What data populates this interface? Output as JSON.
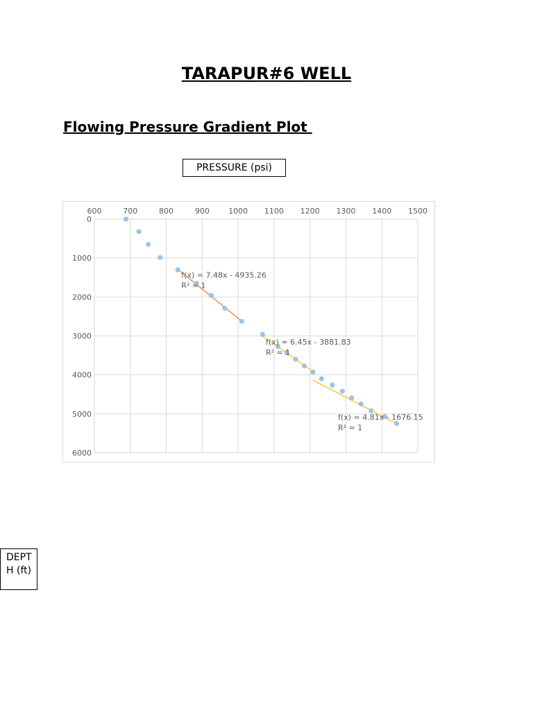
{
  "page": {
    "title": "TARAPUR#6 WELL",
    "subtitle": "Flowing Pressure Gradient Plot ",
    "x_axis_box": "PRESSURE (psi)",
    "y_axis_box": [
      "DEPT",
      "H (ft)"
    ]
  },
  "chart_data": {
    "type": "scatter",
    "title": "",
    "xlabel": "PRESSURE (psi)",
    "ylabel": "DEPTH (ft)",
    "x_axis_position": "top",
    "y_axis_reversed": true,
    "xlim": [
      600,
      1500
    ],
    "ylim": [
      0,
      6000
    ],
    "x_ticks": [
      600,
      700,
      800,
      900,
      1000,
      1100,
      1200,
      1300,
      1400,
      1500
    ],
    "y_ticks": [
      0,
      1000,
      2000,
      3000,
      4000,
      5000,
      6000
    ],
    "grid": true,
    "marker_color": "#9dc3e6",
    "points": [
      {
        "x": 688,
        "y": 0
      },
      {
        "x": 724,
        "y": 320
      },
      {
        "x": 750,
        "y": 650
      },
      {
        "x": 783,
        "y": 985
      },
      {
        "x": 832,
        "y": 1300
      },
      {
        "x": 884,
        "y": 1650
      },
      {
        "x": 925,
        "y": 1960
      },
      {
        "x": 963,
        "y": 2290
      },
      {
        "x": 1010,
        "y": 2625
      },
      {
        "x": 1068,
        "y": 2960
      },
      {
        "x": 1111,
        "y": 3270
      },
      {
        "x": 1135,
        "y": 3430
      },
      {
        "x": 1160,
        "y": 3600
      },
      {
        "x": 1184,
        "y": 3770
      },
      {
        "x": 1208,
        "y": 3930
      },
      {
        "x": 1232,
        "y": 4100
      },
      {
        "x": 1262,
        "y": 4260
      },
      {
        "x": 1290,
        "y": 4420
      },
      {
        "x": 1316,
        "y": 4590
      },
      {
        "x": 1342,
        "y": 4750
      },
      {
        "x": 1370,
        "y": 4920
      },
      {
        "x": 1408,
        "y": 5070
      },
      {
        "x": 1441,
        "y": 5250
      }
    ],
    "trendlines": [
      {
        "color": "#ed7d31",
        "x_range": [
          832,
          1010
        ],
        "label": "f(x) = 7.48x - 4935.26",
        "r2": "R² = 1",
        "label_anchor": {
          "x": 842,
          "y": 1500
        }
      },
      {
        "color": "#ffc000",
        "x_range": [
          1068,
          1208
        ],
        "label": "f(x) = 6.45x - 3881.83",
        "r2": "R² = 1",
        "label_anchor": {
          "x": 1077,
          "y": 3220
        }
      },
      {
        "color": "#ffc000",
        "x_range": [
          1208,
          1441
        ],
        "label": "f(x) = 4.81x - 1676.15",
        "r2": "R² = 1",
        "label_anchor": {
          "x": 1278,
          "y": 5150
        }
      }
    ]
  }
}
